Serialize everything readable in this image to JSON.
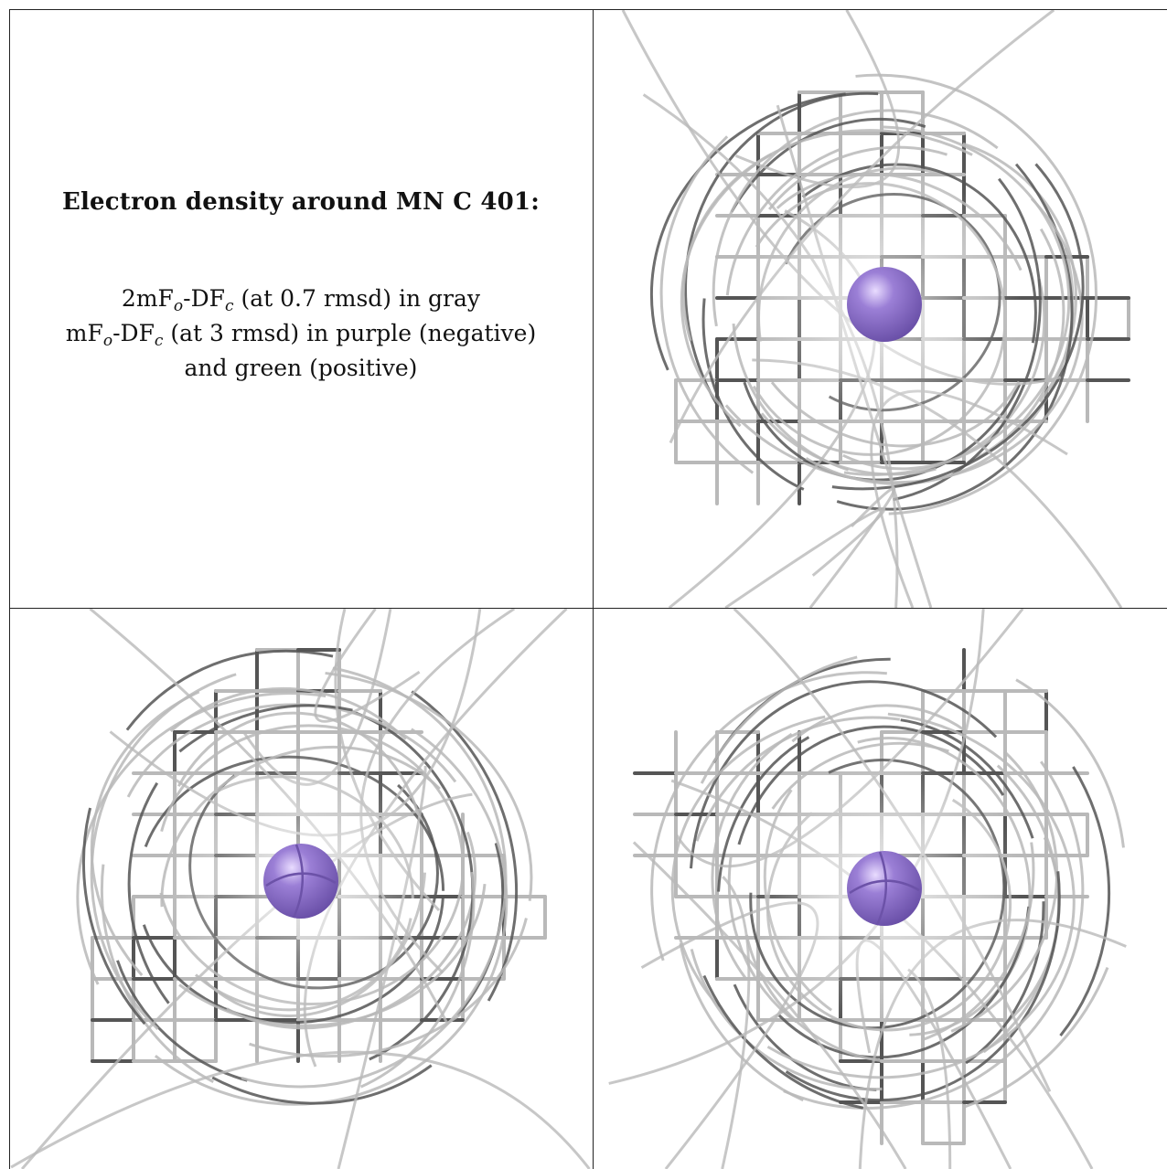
{
  "legend": {
    "title": "Electron density around MN C 401:",
    "line1": {
      "pre": "2mF",
      "sub1": "o",
      "mid": "-DF",
      "sub2": "c",
      "post": " (at 0.7 rmsd) in gray"
    },
    "line2": {
      "pre": "mF",
      "sub1": "o",
      "mid": "-DF",
      "sub2": "c",
      "post": " (at 3 rmsd) in purple (negative)"
    },
    "line3": "and green (positive)"
  },
  "colors": {
    "mesh_gray": "#b9b9b9",
    "mesh_dark": "#555555",
    "atom_purple": "#9b7fd6",
    "border": "#222222"
  },
  "panels": [
    {
      "id": "view-1",
      "atom": "MN"
    },
    {
      "id": "view-2",
      "atom": "MN"
    },
    {
      "id": "view-3",
      "atom": "MN"
    }
  ]
}
